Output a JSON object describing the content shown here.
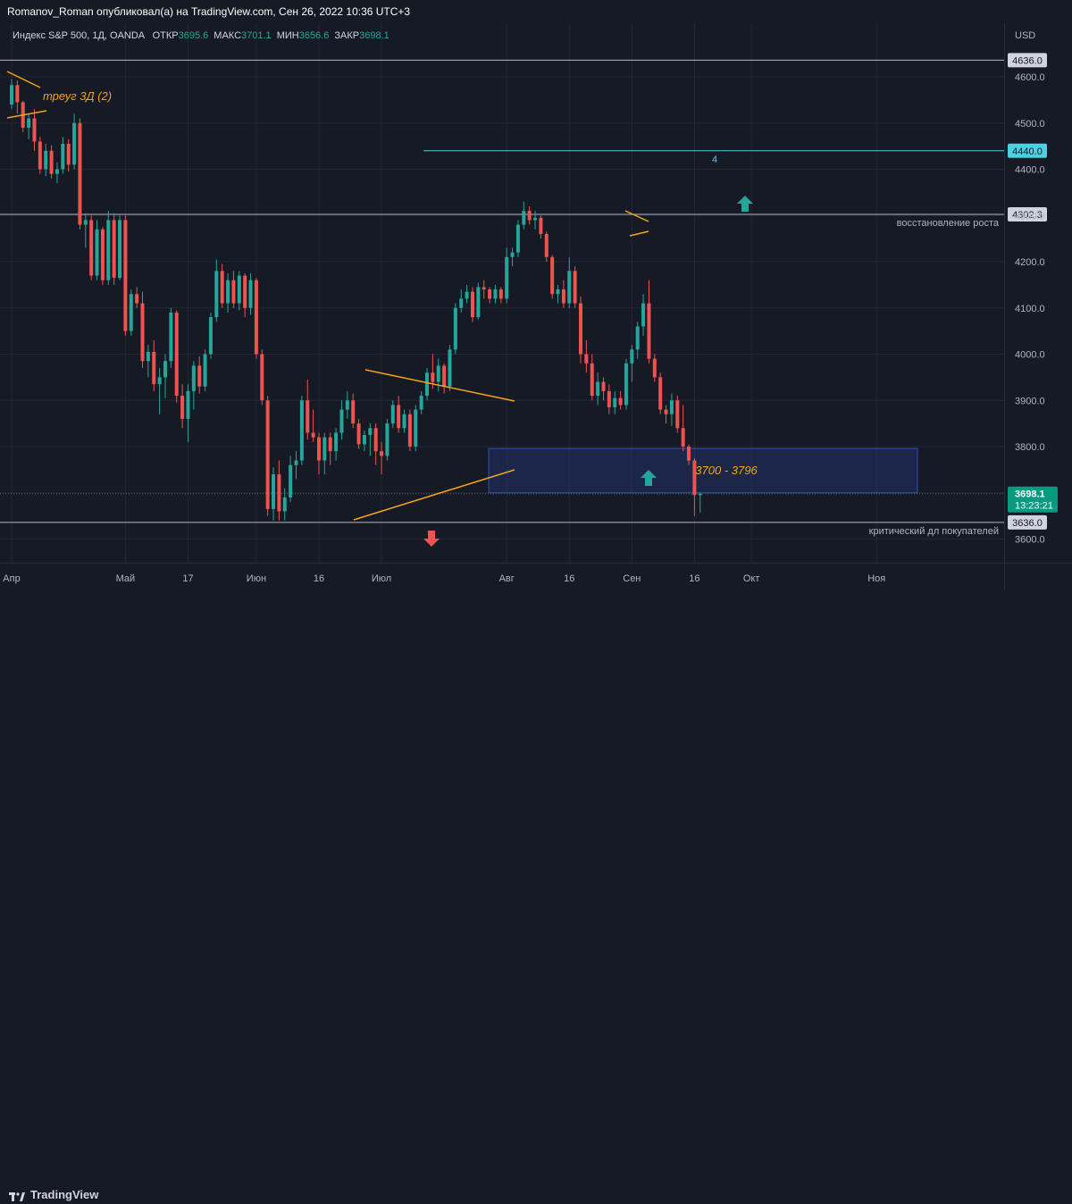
{
  "header": {
    "publish_line": "Romanov_Roman опубликовал(а) на TradingView.com, Сен 26, 2022 10:36 UTC+3"
  },
  "legend": {
    "symbol": "Индекс S&P 500, 1Д, OANDA",
    "open_label": "ОТКР",
    "open_value": "3695.6",
    "high_label": "МАКС",
    "high_value": "3701.1",
    "low_label": "МИН",
    "low_value": "3656.6",
    "close_label": "ЗАКР",
    "close_value": "3698.1"
  },
  "footer": {
    "brand": "TradingView"
  },
  "chart_data": {
    "type": "candlestick",
    "currency_label": "USD",
    "ylim": [
      3530,
      4700
    ],
    "y_ticks": [
      3600,
      3700,
      3800,
      3900,
      4000,
      4100,
      4200,
      4300,
      4400,
      4500,
      4600
    ],
    "y_tick_labels": [
      "3600.0",
      "3700.0",
      "3800.0",
      "3900.0",
      "4000.0",
      "4100.0",
      "4200.0",
      "4300.0",
      "4400.0",
      "4500.0",
      "4600.0"
    ],
    "x_labels": [
      {
        "label": "Апр",
        "index": 0
      },
      {
        "label": "Май",
        "index": 20
      },
      {
        "label": "17",
        "index": 31
      },
      {
        "label": "Июн",
        "index": 43
      },
      {
        "label": "16",
        "index": 54
      },
      {
        "label": "Июл",
        "index": 65
      },
      {
        "label": "Авг",
        "index": 87
      },
      {
        "label": "16",
        "index": 98
      },
      {
        "label": "Сен",
        "index": 109
      },
      {
        "label": "16",
        "index": 120
      },
      {
        "label": "Окт",
        "index": 130
      },
      {
        "label": "Ноя",
        "index": 152
      }
    ],
    "up_color": "#26a69a",
    "down_color": "#ef5350",
    "candles": [
      [
        4540,
        4595,
        4530,
        4582
      ],
      [
        4582,
        4592,
        4520,
        4545
      ],
      [
        4545,
        4548,
        4480,
        4490
      ],
      [
        4490,
        4520,
        4465,
        4510
      ],
      [
        4510,
        4530,
        4440,
        4460
      ],
      [
        4460,
        4470,
        4390,
        4400
      ],
      [
        4400,
        4455,
        4385,
        4440
      ],
      [
        4440,
        4452,
        4380,
        4390
      ],
      [
        4390,
        4415,
        4370,
        4400
      ],
      [
        4400,
        4470,
        4390,
        4455
      ],
      [
        4455,
        4465,
        4395,
        4410
      ],
      [
        4410,
        4520,
        4400,
        4500
      ],
      [
        4500,
        4510,
        4270,
        4280
      ],
      [
        4280,
        4305,
        4230,
        4290
      ],
      [
        4290,
        4300,
        4160,
        4170
      ],
      [
        4170,
        4290,
        4160,
        4270
      ],
      [
        4270,
        4275,
        4150,
        4160
      ],
      [
        4160,
        4310,
        4150,
        4290
      ],
      [
        4290,
        4305,
        4150,
        4165
      ],
      [
        4165,
        4300,
        4160,
        4290
      ],
      [
        4290,
        4300,
        4040,
        4050
      ],
      [
        4050,
        4140,
        4040,
        4130
      ],
      [
        4130,
        4145,
        4100,
        4110
      ],
      [
        4110,
        4135,
        3970,
        3985
      ],
      [
        3985,
        4020,
        3950,
        4005
      ],
      [
        4005,
        4030,
        3920,
        3935
      ],
      [
        3935,
        3970,
        3870,
        3950
      ],
      [
        3950,
        4000,
        3905,
        3985
      ],
      [
        3985,
        4100,
        3970,
        4090
      ],
      [
        4090,
        4095,
        3895,
        3910
      ],
      [
        3910,
        3935,
        3840,
        3860
      ],
      [
        3860,
        3935,
        3810,
        3920
      ],
      [
        3920,
        3985,
        3880,
        3975
      ],
      [
        3975,
        3995,
        3915,
        3930
      ],
      [
        3930,
        4010,
        3920,
        4000
      ],
      [
        4000,
        4090,
        3990,
        4080
      ],
      [
        4080,
        4205,
        4070,
        4180
      ],
      [
        4180,
        4195,
        4100,
        4110
      ],
      [
        4110,
        4175,
        4090,
        4160
      ],
      [
        4160,
        4180,
        4100,
        4110
      ],
      [
        4110,
        4180,
        4095,
        4170
      ],
      [
        4170,
        4175,
        4080,
        4100
      ],
      [
        4100,
        4175,
        4085,
        4160
      ],
      [
        4160,
        4165,
        3990,
        4000
      ],
      [
        4000,
        4010,
        3890,
        3900
      ],
      [
        3900,
        3910,
        3650,
        3665
      ],
      [
        3665,
        3755,
        3640,
        3740
      ],
      [
        3740,
        3770,
        3640,
        3660
      ],
      [
        3660,
        3710,
        3640,
        3690
      ],
      [
        3690,
        3780,
        3680,
        3760
      ],
      [
        3760,
        3790,
        3730,
        3770
      ],
      [
        3770,
        3910,
        3760,
        3900
      ],
      [
        3900,
        3945,
        3815,
        3830
      ],
      [
        3830,
        3880,
        3810,
        3820
      ],
      [
        3820,
        3830,
        3740,
        3770
      ],
      [
        3770,
        3830,
        3740,
        3820
      ],
      [
        3820,
        3830,
        3760,
        3790
      ],
      [
        3790,
        3840,
        3770,
        3830
      ],
      [
        3830,
        3900,
        3815,
        3880
      ],
      [
        3880,
        3920,
        3860,
        3900
      ],
      [
        3900,
        3915,
        3840,
        3850
      ],
      [
        3850,
        3860,
        3795,
        3805
      ],
      [
        3805,
        3835,
        3790,
        3825
      ],
      [
        3825,
        3850,
        3780,
        3840
      ],
      [
        3840,
        3850,
        3760,
        3790
      ],
      [
        3790,
        3810,
        3740,
        3780
      ],
      [
        3780,
        3860,
        3770,
        3850
      ],
      [
        3850,
        3900,
        3840,
        3890
      ],
      [
        3890,
        3910,
        3830,
        3840
      ],
      [
        3840,
        3880,
        3830,
        3870
      ],
      [
        3870,
        3880,
        3790,
        3800
      ],
      [
        3800,
        3890,
        3790,
        3880
      ],
      [
        3880,
        3920,
        3870,
        3910
      ],
      [
        3910,
        3970,
        3900,
        3960
      ],
      [
        3960,
        4000,
        3925,
        3940
      ],
      [
        3940,
        3990,
        3920,
        3975
      ],
      [
        3975,
        3980,
        3915,
        3930
      ],
      [
        3930,
        4020,
        3920,
        4010
      ],
      [
        4010,
        4110,
        4000,
        4100
      ],
      [
        4100,
        4140,
        4090,
        4120
      ],
      [
        4120,
        4150,
        4110,
        4135
      ],
      [
        4135,
        4145,
        4070,
        4080
      ],
      [
        4080,
        4155,
        4075,
        4145
      ],
      [
        4145,
        4160,
        4120,
        4140
      ],
      [
        4140,
        4145,
        4110,
        4120
      ],
      [
        4120,
        4150,
        4110,
        4140
      ],
      [
        4140,
        4145,
        4110,
        4120
      ],
      [
        4120,
        4230,
        4110,
        4210
      ],
      [
        4210,
        4230,
        4190,
        4220
      ],
      [
        4220,
        4290,
        4210,
        4280
      ],
      [
        4280,
        4330,
        4270,
        4310
      ],
      [
        4310,
        4320,
        4280,
        4290
      ],
      [
        4290,
        4310,
        4270,
        4295
      ],
      [
        4295,
        4300,
        4250,
        4260
      ],
      [
        4260,
        4265,
        4200,
        4210
      ],
      [
        4210,
        4215,
        4120,
        4130
      ],
      [
        4130,
        4150,
        4110,
        4140
      ],
      [
        4140,
        4160,
        4100,
        4110
      ],
      [
        4110,
        4210,
        4100,
        4180
      ],
      [
        4180,
        4190,
        4100,
        4110
      ],
      [
        4110,
        4125,
        3980,
        4000
      ],
      [
        4000,
        4030,
        3960,
        3980
      ],
      [
        3980,
        4000,
        3900,
        3910
      ],
      [
        3910,
        3960,
        3890,
        3940
      ],
      [
        3940,
        3950,
        3900,
        3920
      ],
      [
        3920,
        3935,
        3870,
        3885
      ],
      [
        3885,
        3920,
        3870,
        3905
      ],
      [
        3905,
        3920,
        3880,
        3890
      ],
      [
        3890,
        3990,
        3880,
        3980
      ],
      [
        3980,
        4020,
        3940,
        4010
      ],
      [
        4010,
        4070,
        3990,
        4060
      ],
      [
        4060,
        4130,
        4040,
        4110
      ],
      [
        4110,
        4160,
        3980,
        3990
      ],
      [
        3990,
        4000,
        3940,
        3950
      ],
      [
        3950,
        3960,
        3870,
        3880
      ],
      [
        3880,
        3890,
        3850,
        3870
      ],
      [
        3870,
        3915,
        3845,
        3900
      ],
      [
        3900,
        3910,
        3830,
        3840
      ],
      [
        3840,
        3890,
        3790,
        3800
      ],
      [
        3800,
        3805,
        3760,
        3770
      ],
      [
        3770,
        3775,
        3650,
        3695
      ],
      [
        3695,
        3701,
        3657,
        3698
      ]
    ],
    "horizontal_levels": [
      {
        "value": "4636.0",
        "label": "",
        "color": "#b2b5be"
      },
      {
        "value": "4440.0",
        "label": "4",
        "color": "#4dd0e1"
      },
      {
        "value": "4302.3",
        "label": "восстановление роста",
        "color": "#b2b5be"
      },
      {
        "value": "3636.0",
        "label": "критический дл покупателей",
        "color": "#b2b5be"
      }
    ],
    "zone": {
      "low": 3700,
      "high": 3796,
      "label": "3700 - 3796"
    },
    "annotations": {
      "triangle_label": "треуг 3Д (2)"
    },
    "last_price": {
      "value": "3698.1",
      "countdown": "13:23:21"
    }
  }
}
